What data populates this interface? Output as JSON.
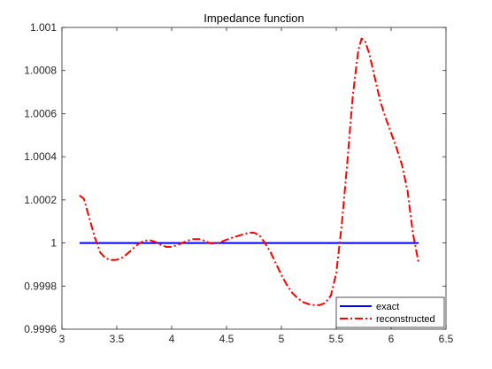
{
  "chart_data": {
    "type": "line",
    "title": "Impedance function",
    "xlabel": "",
    "ylabel": "",
    "xlim": [
      3,
      6.5
    ],
    "ylim": [
      0.9996,
      1.001
    ],
    "xticks": [
      3,
      3.5,
      4,
      4.5,
      5,
      5.5,
      6,
      6.5
    ],
    "xtick_labels": [
      "3",
      "3.5",
      "4",
      "4.5",
      "5",
      "5.5",
      "6",
      "6.5"
    ],
    "yticks": [
      0.9996,
      0.9998,
      1,
      1.0002,
      1.0004,
      1.0006,
      1.0008,
      1.001
    ],
    "ytick_labels": [
      "0.9996",
      "0.9998",
      "1",
      "1.0002",
      "1.0004",
      "1.0006",
      "1.0008",
      "1.001"
    ],
    "grid": false,
    "legend_position": "bottom-right",
    "series": [
      {
        "name": "exact",
        "color": "#0000ff",
        "style": "solid",
        "x": [
          3.16,
          6.25
        ],
        "y": [
          1.0,
          1.0
        ]
      },
      {
        "name": "reconstructed",
        "color": "#ff0000",
        "style": "dashdot",
        "x": [
          3.16,
          3.2,
          3.25,
          3.3,
          3.35,
          3.4,
          3.45,
          3.5,
          3.55,
          3.6,
          3.65,
          3.7,
          3.75,
          3.8,
          3.85,
          3.9,
          3.95,
          4.0,
          4.05,
          4.1,
          4.15,
          4.2,
          4.25,
          4.3,
          4.35,
          4.4,
          4.45,
          4.5,
          4.55,
          4.6,
          4.65,
          4.7,
          4.75,
          4.8,
          4.85,
          4.9,
          4.95,
          5.0,
          5.05,
          5.1,
          5.15,
          5.2,
          5.25,
          5.3,
          5.35,
          5.4,
          5.45,
          5.5,
          5.55,
          5.6,
          5.65,
          5.7,
          5.73,
          5.76,
          5.8,
          5.85,
          5.9,
          5.95,
          6.0,
          6.05,
          6.1,
          6.15,
          6.2,
          6.25
        ],
        "y": [
          1.00022,
          1.000205,
          1.000115,
          1.000025,
          0.999955,
          0.999928,
          0.999921,
          0.999922,
          0.999932,
          0.999952,
          0.999975,
          0.999997,
          1.00001,
          1.000013,
          1.000005,
          0.999992,
          0.999982,
          0.999982,
          0.99999,
          1.000001,
          1.000011,
          1.000018,
          1.000018,
          1.00001,
          0.999998,
          0.999997,
          1.000005,
          1.000015,
          1.000024,
          1.000032,
          1.00004,
          1.000047,
          1.000048,
          1.000035,
          1.0,
          0.999958,
          0.999905,
          0.999852,
          0.999805,
          0.999768,
          0.999743,
          0.999725,
          0.999716,
          0.999712,
          0.999712,
          0.999722,
          0.999755,
          0.99986,
          1.000085,
          1.00037,
          1.00068,
          1.00089,
          1.000948,
          1.00094,
          1.00088,
          1.00077,
          1.00066,
          1.00058,
          1.00051,
          1.00044,
          1.00036,
          1.00024,
          1.00004,
          0.99991
        ]
      }
    ]
  }
}
